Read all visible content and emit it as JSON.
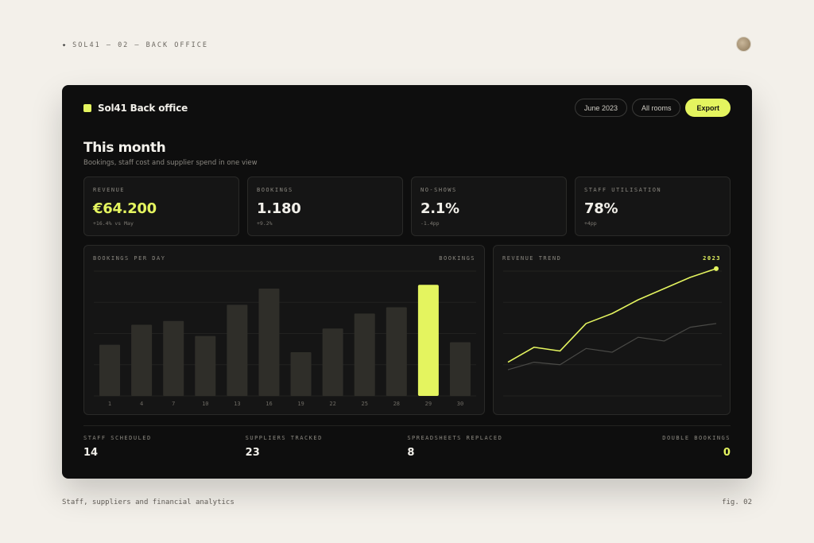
{
  "page": {
    "top_label": "SOL41 — 02 — BACK OFFICE",
    "star_icon": "✦",
    "caption": "Staff, suppliers and financial analytics",
    "fig_label": "fig. 02"
  },
  "app": {
    "brand_name": "Sol41 Back office",
    "filters": {
      "month": "June 2023",
      "rooms": "All rooms"
    },
    "export_label": "Export"
  },
  "header": {
    "title": "This month",
    "subtitle": "Bookings, staff cost and supplier spend in one view"
  },
  "kpis": [
    {
      "label": "REVENUE",
      "value": "€64.200",
      "delta": "+16.4% vs May"
    },
    {
      "label": "BOOKINGS",
      "value": "1.180",
      "delta": "+9.2%"
    },
    {
      "label": "NO-SHOWS",
      "value": "2.1%",
      "delta": "-1.4pp"
    },
    {
      "label": "STAFF UTILISATION",
      "value": "78%",
      "delta": "+4pp"
    }
  ],
  "bookings_panel": {
    "title": "BOOKINGS PER DAY",
    "tag": "BOOKINGS"
  },
  "revenue_panel": {
    "title": "REVENUE TREND",
    "tag": "2023"
  },
  "chart_data": [
    {
      "type": "bar",
      "title": "BOOKINGS PER DAY",
      "categories": [
        "1",
        "4",
        "7",
        "10",
        "13",
        "16",
        "19",
        "22",
        "25",
        "28",
        "29",
        "30"
      ],
      "values": [
        41,
        57,
        60,
        48,
        73,
        86,
        35,
        54,
        66,
        71,
        89,
        43
      ],
      "highlight_index": 10,
      "ylim": [
        0,
        100
      ],
      "grid": true
    },
    {
      "type": "line",
      "title": "REVENUE TREND",
      "ylim": [
        0,
        100
      ],
      "grid": true,
      "series": [
        {
          "values": [
            27,
            39,
            36,
            58,
            66,
            77,
            86,
            95,
            102
          ]
        },
        {
          "values": [
            21,
            27,
            25,
            38,
            35,
            47,
            44,
            55,
            58
          ]
        }
      ]
    }
  ],
  "footer_stats": [
    {
      "label": "STAFF SCHEDULED",
      "value": "14"
    },
    {
      "label": "SUPPLIERS TRACKED",
      "value": "23"
    },
    {
      "label": "SPREADSHEETS REPLACED",
      "value": "8"
    },
    {
      "label": "DOUBLE BOOKINGS",
      "value": "0"
    }
  ],
  "colors": {
    "accent": "#e4f45f",
    "bar": "#2f2e29",
    "muted_line": "#4a4a47",
    "grid": "#222220"
  }
}
